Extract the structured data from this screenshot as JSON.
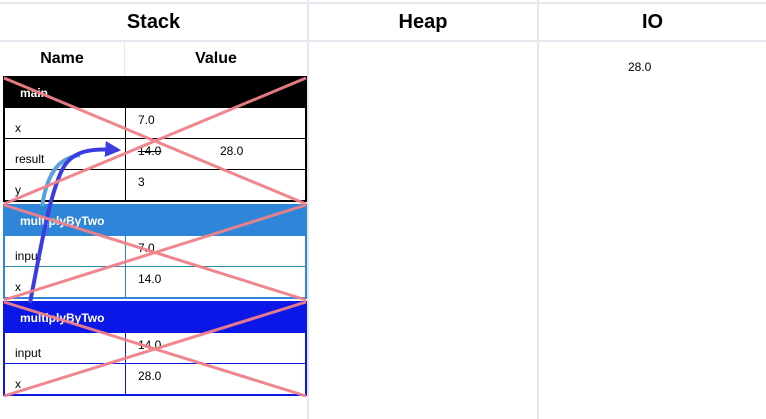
{
  "columns": {
    "stack": "Stack",
    "heap": "Heap",
    "io": "IO",
    "name_header": "Name",
    "value_header": "Value"
  },
  "frames": [
    {
      "name": "main",
      "color": "#000000",
      "rows": [
        {
          "name": "x",
          "value": "7.0"
        },
        {
          "name": "result",
          "old_value": "14.0",
          "value": "28.0"
        },
        {
          "name": "y",
          "value": "3"
        }
      ]
    },
    {
      "name": "multiplyByTwo",
      "color": "#2f86d8",
      "rows": [
        {
          "name": "input",
          "value": "7.0"
        },
        {
          "name": "x",
          "value": "14.0"
        }
      ]
    },
    {
      "name": "multiplyByTwo",
      "color": "#0b17e6",
      "rows": [
        {
          "name": "input",
          "value": "14.0"
        },
        {
          "name": "x",
          "value": "28.0"
        }
      ]
    }
  ],
  "io": {
    "output": "28.0"
  },
  "colors": {
    "grid": "#e3e7ee",
    "cross": "#f08088",
    "arrow_light": "#5aa2dd",
    "arrow_dark": "#3a3ee0"
  }
}
